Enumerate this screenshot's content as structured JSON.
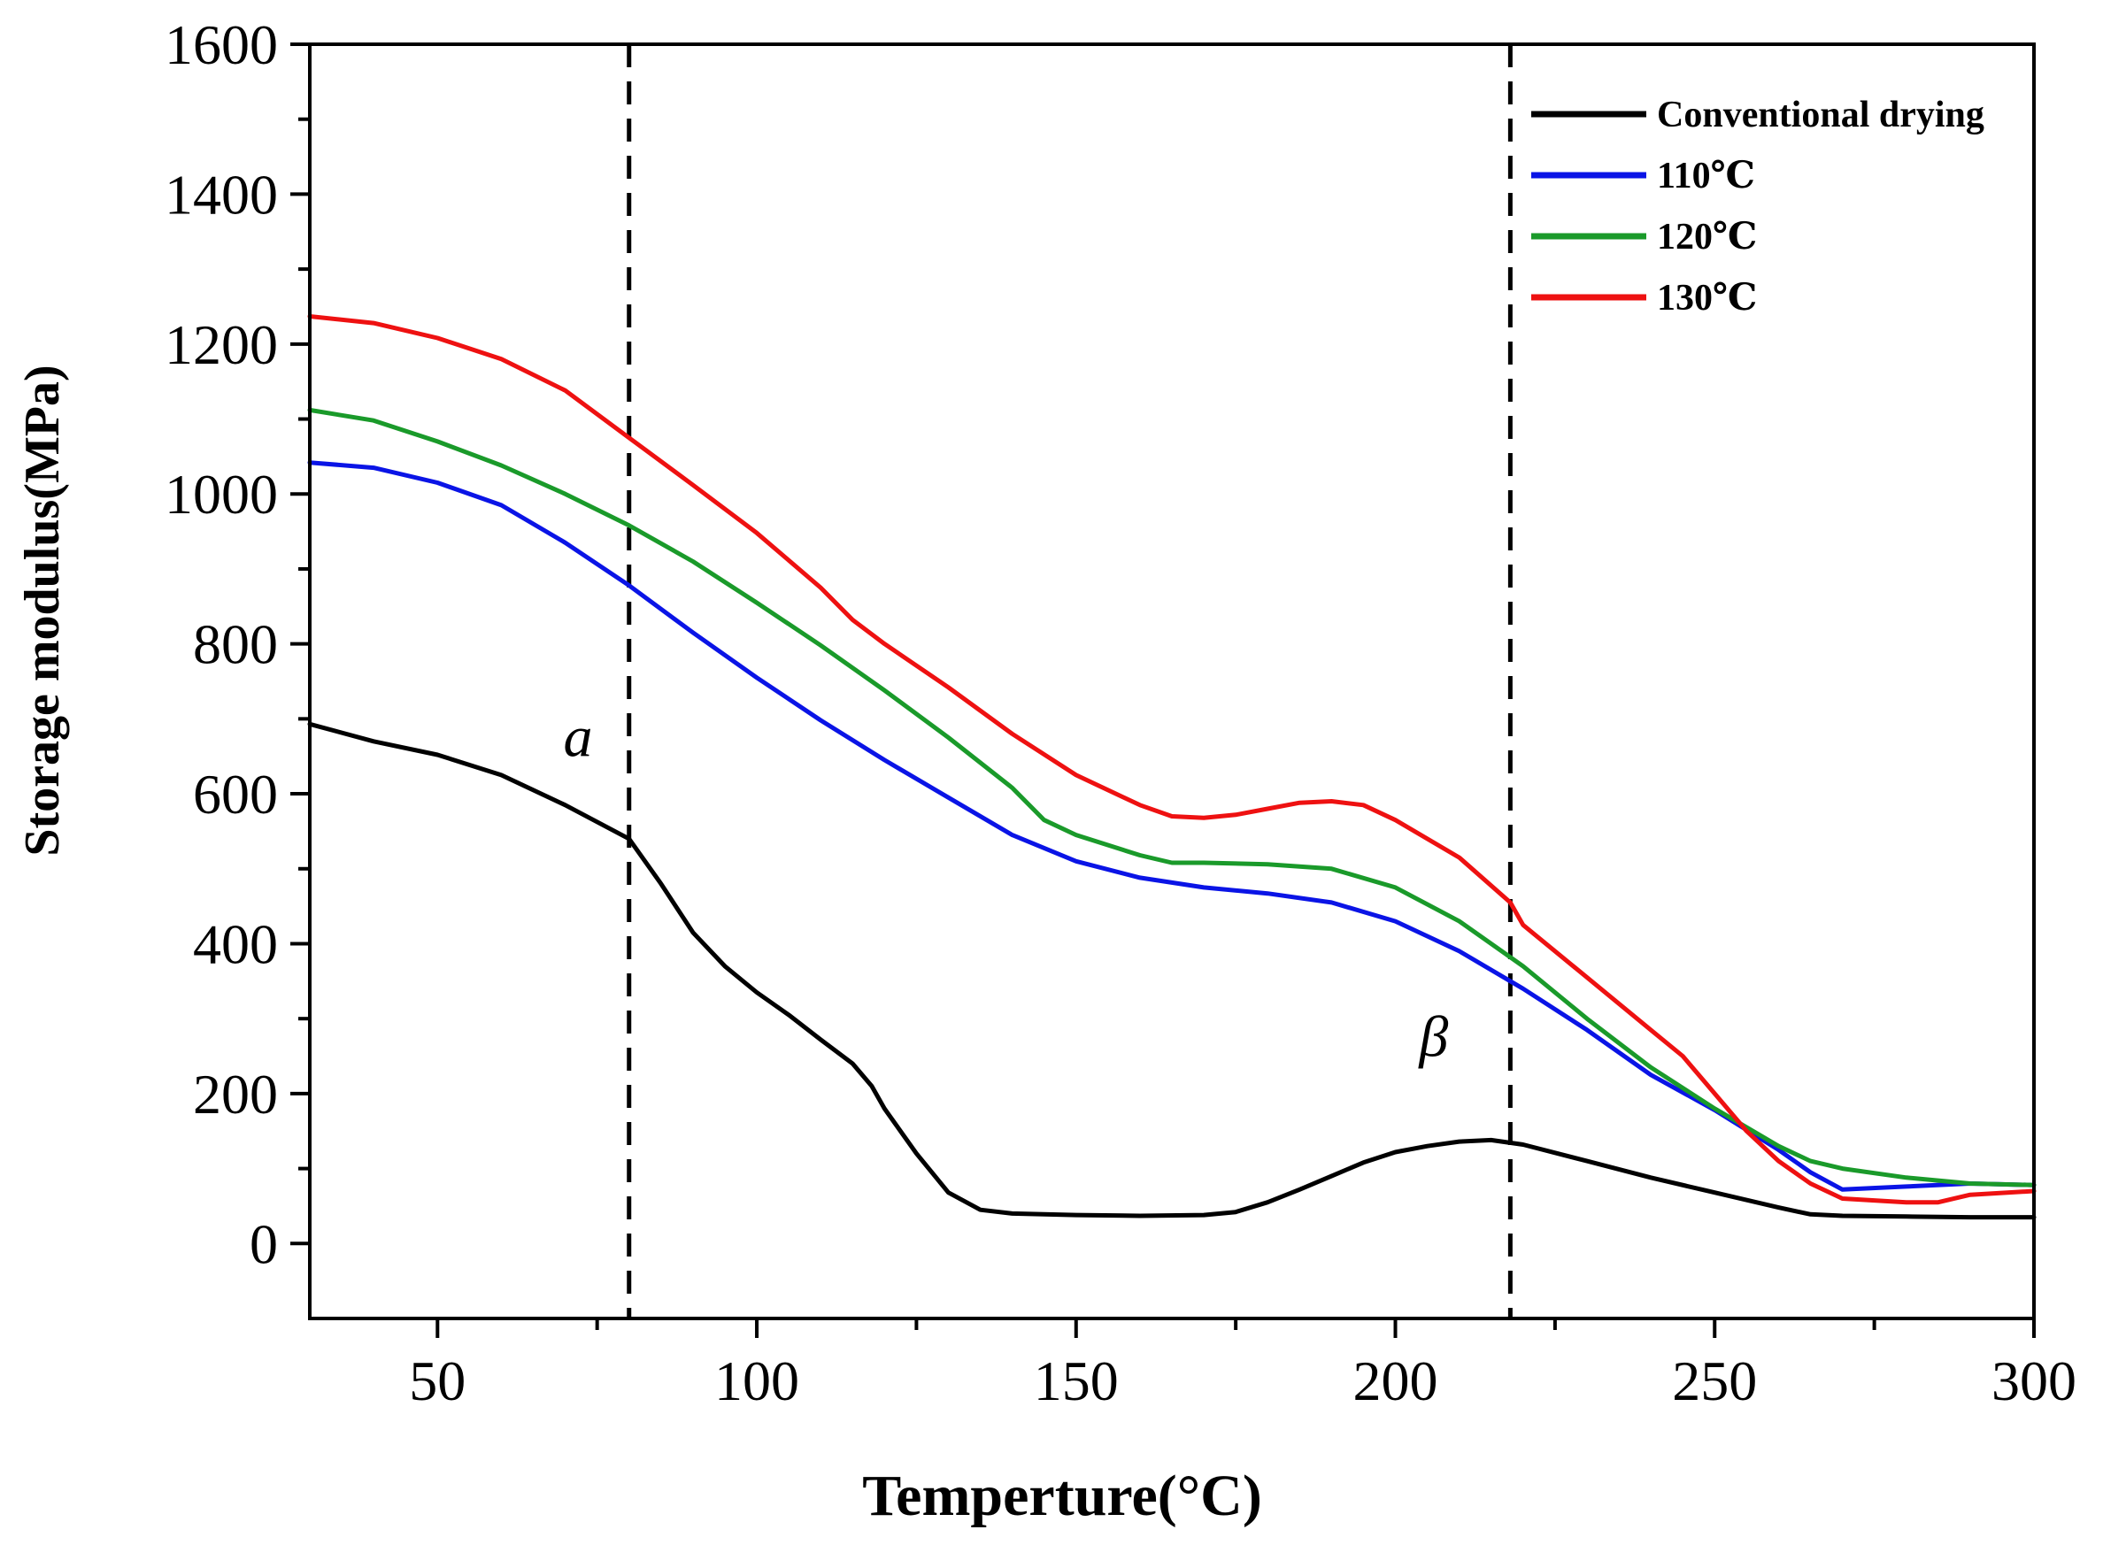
{
  "chart_data": {
    "type": "line",
    "title": "",
    "xlabel": "Temperture(°C)",
    "ylabel": "Storage modulus(MPa)",
    "xlim": [
      30,
      300
    ],
    "ylim": [
      -100,
      1600
    ],
    "x_major_ticks": [
      50,
      100,
      150,
      200,
      250,
      300
    ],
    "x_tick_labels": [
      "50",
      "100",
      "150",
      "200",
      "250",
      "300"
    ],
    "y_major_ticks": [
      0,
      200,
      400,
      600,
      800,
      1000,
      1200,
      1400,
      1600
    ],
    "y_tick_labels": [
      "0",
      "200",
      "400",
      "600",
      "800",
      "1000",
      "1200",
      "1400",
      "1600"
    ],
    "legend_position": "top-right",
    "reference_lines": [
      {
        "axis": "x",
        "value": 80,
        "style": "dashed",
        "color": "#000000"
      },
      {
        "axis": "x",
        "value": 218,
        "style": "dashed",
        "color": "#000000"
      }
    ],
    "annotations": [
      {
        "text": "a",
        "x": 72,
        "y": 650
      },
      {
        "text": "β",
        "x": 206,
        "y": 250
      }
    ],
    "series": [
      {
        "name": "Conventional drying",
        "color": "#000000",
        "x": [
          30,
          40,
          50,
          60,
          70,
          80,
          85,
          90,
          95,
          100,
          105,
          110,
          115,
          118,
          120,
          125,
          130,
          135,
          140,
          150,
          160,
          170,
          175,
          180,
          185,
          190,
          195,
          200,
          205,
          210,
          215,
          220,
          230,
          240,
          250,
          260,
          265,
          270,
          280,
          290,
          300
        ],
        "y": [
          693,
          670,
          652,
          625,
          585,
          540,
          480,
          415,
          370,
          335,
          305,
          272,
          240,
          210,
          180,
          120,
          68,
          45,
          40,
          38,
          37,
          38,
          42,
          55,
          72,
          90,
          108,
          122,
          130,
          136,
          138,
          132,
          110,
          88,
          68,
          48,
          39,
          37,
          36,
          35,
          35
        ]
      },
      {
        "name": "110℃",
        "color": "#0a14e6",
        "x": [
          30,
          40,
          50,
          60,
          70,
          80,
          90,
          100,
          110,
          120,
          130,
          140,
          150,
          160,
          170,
          180,
          190,
          200,
          210,
          220,
          230,
          240,
          250,
          260,
          265,
          270,
          280,
          290,
          300
        ],
        "y": [
          1042,
          1035,
          1015,
          985,
          935,
          878,
          815,
          755,
          698,
          645,
          595,
          545,
          510,
          488,
          475,
          467,
          455,
          430,
          390,
          340,
          285,
          225,
          178,
          125,
          95,
          72,
          76,
          80,
          78
        ]
      },
      {
        "name": "120℃",
        "color": "#1a9a2a",
        "x": [
          30,
          40,
          50,
          60,
          70,
          80,
          90,
          100,
          110,
          120,
          130,
          140,
          145,
          150,
          160,
          165,
          170,
          180,
          190,
          200,
          210,
          220,
          230,
          240,
          250,
          260,
          265,
          270,
          280,
          290,
          300
        ],
        "y": [
          1112,
          1098,
          1070,
          1038,
          1000,
          958,
          910,
          855,
          798,
          738,
          675,
          608,
          565,
          545,
          518,
          508,
          508,
          506,
          500,
          475,
          430,
          370,
          300,
          235,
          180,
          130,
          110,
          100,
          88,
          80,
          78
        ]
      },
      {
        "name": "130℃",
        "color": "#ee1111",
        "x": [
          30,
          40,
          50,
          60,
          70,
          80,
          90,
          100,
          110,
          115,
          120,
          130,
          140,
          150,
          160,
          165,
          170,
          175,
          180,
          185,
          190,
          195,
          200,
          210,
          218,
          220,
          230,
          240,
          245,
          250,
          255,
          260,
          265,
          270,
          280,
          285,
          290,
          300
        ],
        "y": [
          1237,
          1228,
          1208,
          1180,
          1138,
          1075,
          1012,
          948,
          875,
          832,
          800,
          742,
          680,
          625,
          585,
          570,
          568,
          572,
          580,
          588,
          590,
          585,
          565,
          515,
          455,
          425,
          355,
          285,
          250,
          200,
          150,
          110,
          80,
          60,
          55,
          55,
          65,
          70
        ]
      }
    ]
  }
}
